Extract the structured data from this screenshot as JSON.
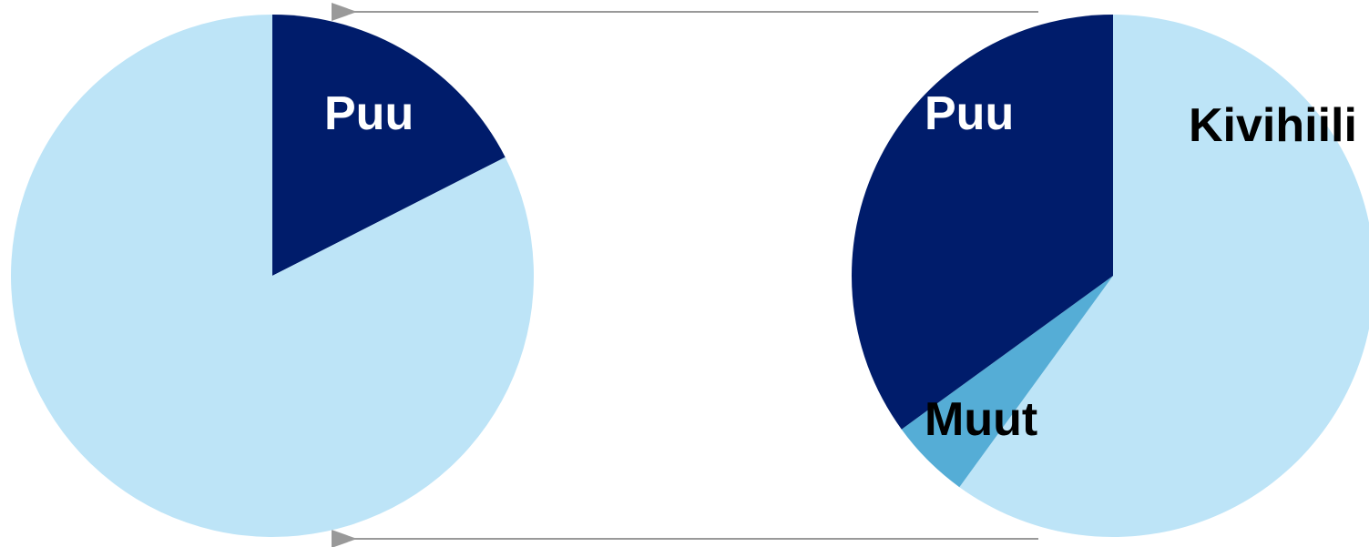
{
  "colors": {
    "dark_navy": "#001c6b",
    "light_blue": "#bde4f7",
    "mid_blue": "#55add6",
    "arrow_gray": "#999999",
    "label_light": "#ffffff",
    "label_dark": "#000000"
  },
  "chart_data": [
    {
      "type": "pie",
      "start_angle_deg": 0,
      "direction": "clockwise",
      "slices": [
        {
          "label": "Puu",
          "value": 17.5,
          "color": "#001c6b",
          "label_color": "#ffffff"
        },
        {
          "label": "",
          "value": 82.5,
          "color": "#bde4f7",
          "label_color": "#000000"
        }
      ]
    },
    {
      "type": "pie",
      "start_angle_deg": 0,
      "direction": "clockwise",
      "slices": [
        {
          "label": "Kivihiili",
          "value": 60,
          "color": "#bde4f7",
          "label_color": "#000000"
        },
        {
          "label": "Muut",
          "value": 5,
          "color": "#55add6",
          "label_color": "#000000"
        },
        {
          "label": "Puu",
          "value": 35,
          "color": "#001c6b",
          "label_color": "#ffffff"
        }
      ]
    }
  ],
  "connectors": [
    {
      "name": "top-arrow",
      "direction": "right-to-left"
    },
    {
      "name": "bottom-arrow",
      "direction": "right-to-left"
    }
  ]
}
